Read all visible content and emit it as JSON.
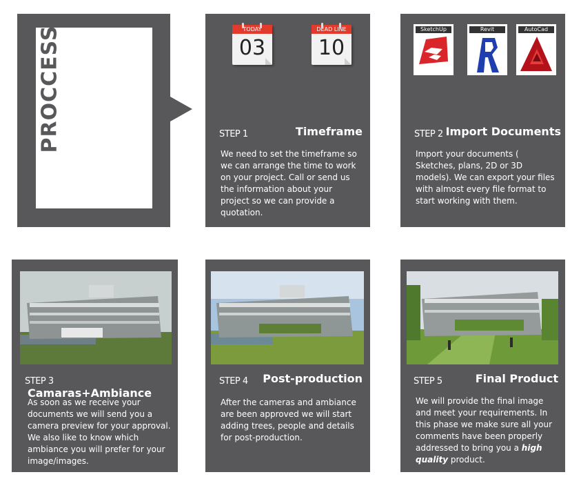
{
  "process": {
    "title": "PROCCESS"
  },
  "calendars": [
    {
      "label": "TODAY",
      "day": "03"
    },
    {
      "label": "DEAD LINE",
      "day": "10"
    }
  ],
  "apps": [
    {
      "label": "SketchUp",
      "icon": "sketchup-icon"
    },
    {
      "label": "Revit",
      "icon": "revit-icon"
    },
    {
      "label": "AutoCad",
      "icon": "autocad-icon"
    }
  ],
  "steps": [
    {
      "num": "STEP 1",
      "title": "Timeframe",
      "text": "We need to set the timeframe so we can arrange the time to work on your project. Call or send us the information about your project so we can provide a quotation."
    },
    {
      "num": "STEP 2",
      "title": "Import Documents",
      "text": "Import your documents ( Sketches, plans, 2D or 3D models). We can export your files with almost every file format to start working with them."
    },
    {
      "num": "STEP 3",
      "title": "Camaras+Ambiance",
      "text": "As soon as we receive your documents we will send you a camera preview for your approval. We also like to know which ambiance you will prefer for your image/images."
    },
    {
      "num": "STEP 4",
      "title": "Post-production",
      "text": "After the cameras and ambiance are been approved we will start adding trees, people and details for post-production."
    },
    {
      "num": "STEP 5",
      "title": "Final Product",
      "text_before": "We will provide the final image and meet your requirements. In this phase we make sure all your comments have been properly addressed to bring you a ",
      "text_emph": "high quality",
      "text_after": " product."
    }
  ],
  "colors": {
    "panel": "#58585a",
    "calendar_red": "#e23b2e"
  }
}
